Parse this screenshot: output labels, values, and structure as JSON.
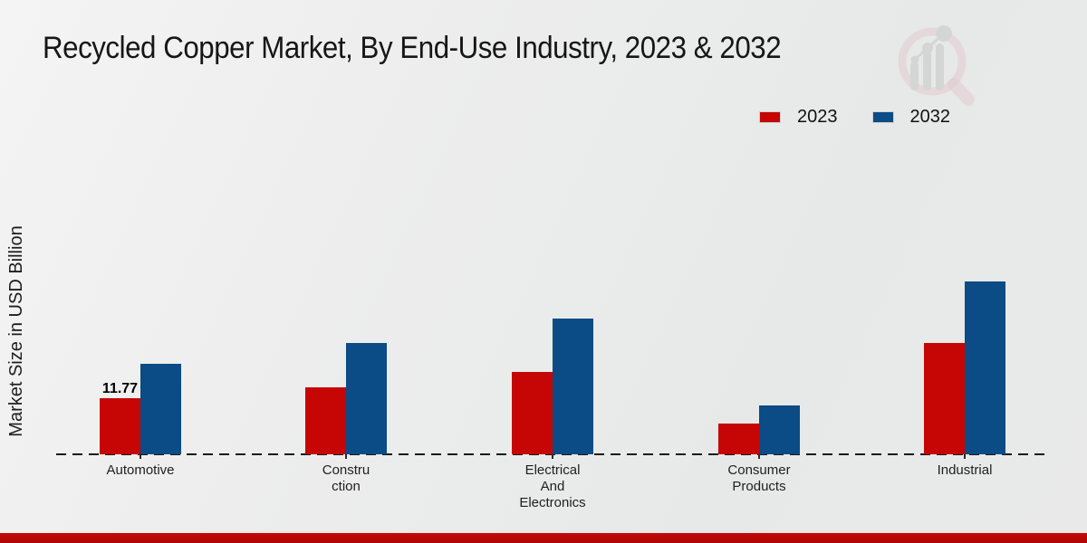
{
  "title": "Recycled Copper Market, By End-Use Industry, 2023 & 2032",
  "y_axis_label": "Market Size in USD Billion",
  "legend": {
    "items": [
      {
        "label": "2023",
        "color": "#c60505"
      },
      {
        "label": "2032",
        "color": "#0b4b86"
      }
    ]
  },
  "colors": {
    "series_2023": "#c60505",
    "series_2032": "#0b4b86",
    "footer_accent": "#b80808",
    "background": "#ebebeb",
    "baseline": "#1a1a1a",
    "watermark_pink": "#ddb3ba",
    "watermark_gray": "#c6c6c6"
  },
  "chart_data": {
    "type": "bar",
    "title": "Recycled Copper Market, By End-Use Industry, 2023 & 2032",
    "xlabel": "",
    "ylabel": "Market Size in USD Billion",
    "categories": [
      "Automotive",
      "Construction",
      "Electrical And Electronics",
      "Consumer Products",
      "Industrial"
    ],
    "category_display": [
      "Automotive",
      "Constru\nction",
      "Electrical\nAnd\nElectronics",
      "Consumer\nProducts",
      "Industrial"
    ],
    "series": [
      {
        "name": "2023",
        "color": "#c60505",
        "values": [
          11.77,
          14.0,
          17.3,
          6.4,
          23.3
        ]
      },
      {
        "name": "2032",
        "color": "#0b4b86",
        "values": [
          19.0,
          23.3,
          28.4,
          10.3,
          36.2
        ]
      }
    ],
    "data_labels": [
      {
        "series_index": 0,
        "category_index": 0,
        "text": "11.77"
      }
    ],
    "grid": false,
    "y_tick_labels_visible": false,
    "baseline_style": "dashed",
    "legend_position": "top-right"
  }
}
